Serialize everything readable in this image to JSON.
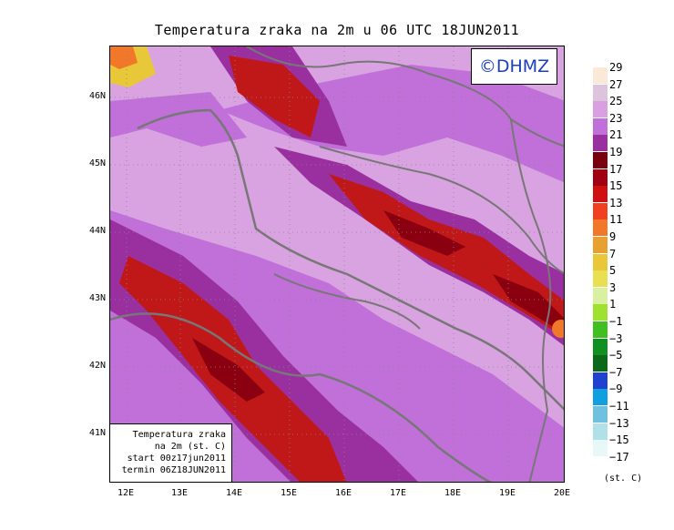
{
  "title": "Temperatura zraka na 2m u 06 UTC 18JUN2011",
  "logo": "©DHMZ",
  "info": {
    "line1": "Temperatura zraka",
    "line2": "na 2m (st. C)",
    "line3": "start 00z17jun2011",
    "line4": "termin 06Z18JUN2011"
  },
  "latitude_labels": [
    "46N",
    "45N",
    "44N",
    "43N",
    "42N",
    "41N"
  ],
  "longitude_labels": [
    "12E",
    "13E",
    "14E",
    "15E",
    "16E",
    "17E",
    "18E",
    "19E",
    "20E"
  ],
  "legend": {
    "unit": "(st. C)",
    "labels": [
      "29",
      "27",
      "25",
      "23",
      "21",
      "19",
      "17",
      "15",
      "13",
      "11",
      "9",
      "7",
      "5",
      "3",
      "1",
      "−1",
      "−3",
      "−5",
      "−7",
      "−9",
      "−11",
      "−13",
      "−15",
      "−17"
    ],
    "colors": [
      "#fae8d8",
      "#dcc4dc",
      "#d8a0e0",
      "#c070d8",
      "#9a30a0",
      "#7a0010",
      "#a00010",
      "#d01010",
      "#f04020",
      "#f07828",
      "#e8a030",
      "#e8c838",
      "#e8e050",
      "#d8f0a0",
      "#a0e030",
      "#40c020",
      "#109020",
      "#0a6818",
      "#2040d0",
      "#10a0e0",
      "#70c0e0",
      "#b0e0e8",
      "#e8f8f8"
    ]
  }
}
